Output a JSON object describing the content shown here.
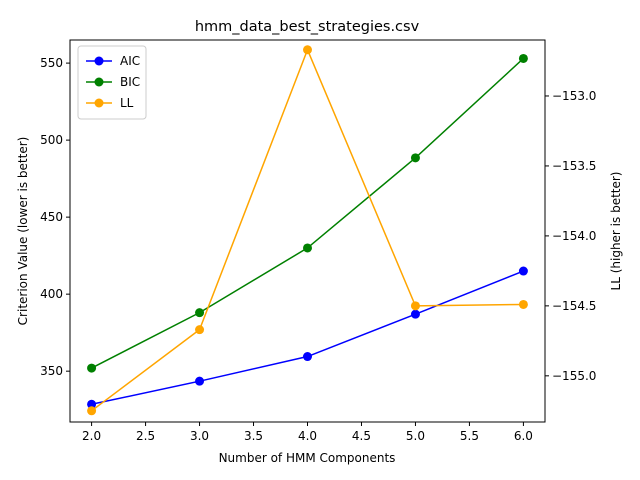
{
  "chart_data": {
    "type": "line",
    "title": "hmm_data_best_strategies.csv",
    "xlabel": "Number of HMM Components",
    "ylabel": "Criterion Value (lower is better)",
    "y2label": "LL (higher is better)",
    "x": [
      2,
      3,
      4,
      5,
      6
    ],
    "xlim": [
      1.8,
      6.2
    ],
    "xticks": [
      2.0,
      2.5,
      3.0,
      3.5,
      4.0,
      4.5,
      5.0,
      5.5,
      6.0
    ],
    "xtick_labels": [
      "2.0",
      "2.5",
      "3.0",
      "3.5",
      "4.0",
      "4.5",
      "5.0",
      "5.5",
      "6.0"
    ],
    "ylim": [
      317,
      565
    ],
    "yticks": [
      350,
      400,
      450,
      500,
      550
    ],
    "ytick_labels": [
      "350",
      "400",
      "450",
      "500",
      "550"
    ],
    "y2lim": [
      -155.33,
      -152.6
    ],
    "y2ticks": [
      -155.0,
      -154.5,
      -154.0,
      -153.5,
      -153.0
    ],
    "y2tick_labels": [
      "−155.0",
      "−154.5",
      "−154.0",
      "−153.5",
      "−153.0"
    ],
    "grid": false,
    "legend_position": "upper-left",
    "series": [
      {
        "name": "AIC",
        "axis": "left",
        "color": "#0000ff",
        "values": [
          328.5,
          343.5,
          359.5,
          387.0,
          415.0
        ]
      },
      {
        "name": "BIC",
        "axis": "left",
        "color": "#008000",
        "values": [
          352.0,
          388.0,
          430.0,
          488.5,
          553.0
        ]
      },
      {
        "name": "LL",
        "axis": "right",
        "color": "#ffa500",
        "values": [
          -155.25,
          -154.67,
          -152.67,
          -154.5,
          -154.49
        ]
      }
    ]
  }
}
